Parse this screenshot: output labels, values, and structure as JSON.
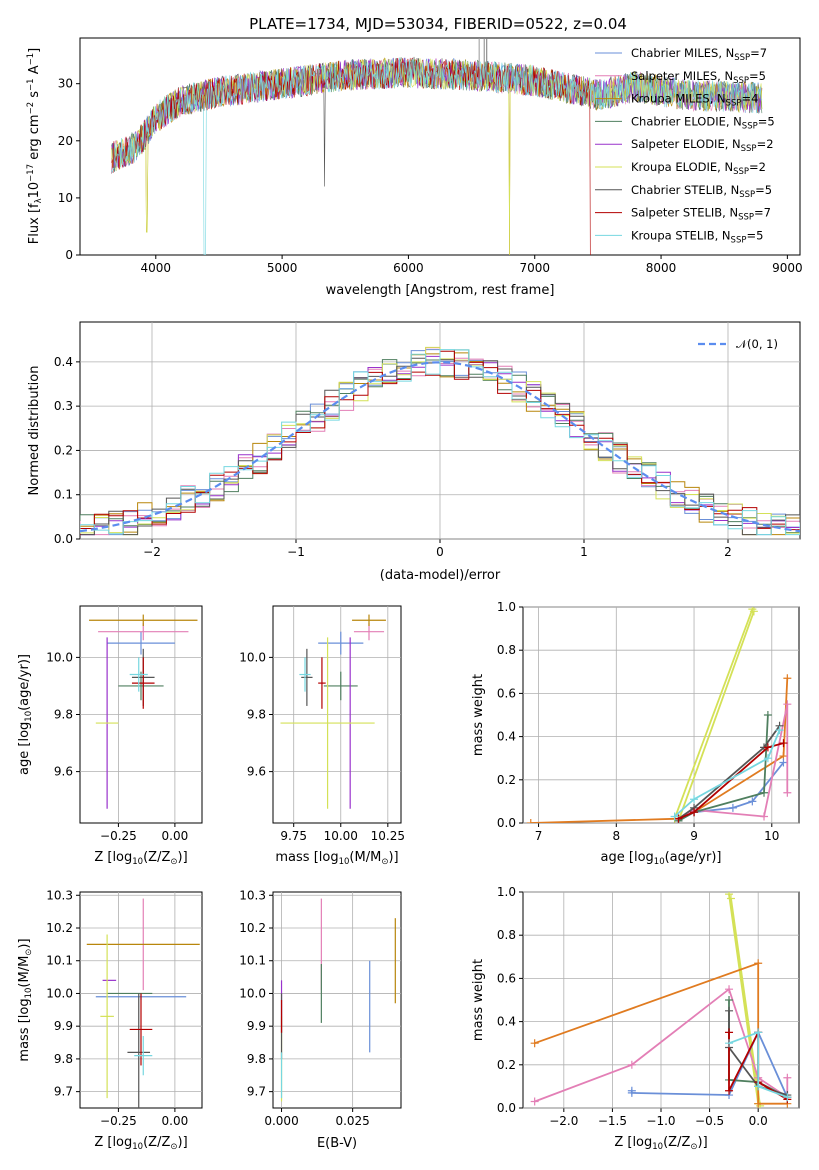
{
  "figure": {
    "title": "PLATE=1734, MJD=53034, FIBERID=0522, z=0.04"
  },
  "colors": {
    "Chabrier MILES": "#6a8fd8",
    "Salpeter MILES": "#e37fb6",
    "Kroupa MILES": "#b8860b",
    "Chabrier ELODIE": "#4f7f5f",
    "Salpeter ELODIE": "#9932cc",
    "Kroupa ELODIE": "#d4e157",
    "Chabrier STELIB": "#555555",
    "Salpeter STELIB": "#b30000",
    "Kroupa STELIB": "#76d7e0",
    "normal_curve": "#5b8def",
    "orange": "#e07b20"
  },
  "chart_data": [
    {
      "type": "line",
      "xlabel": "wavelength [Angstrom, rest frame]",
      "ylabel_parts": [
        "Flux [f",
        "λ",
        "10",
        "−17",
        " erg cm",
        "−2",
        " s",
        "−1",
        " A",
        "−1",
        "]"
      ],
      "xlim": [
        3400,
        9100
      ],
      "ylim": [
        0,
        38
      ],
      "xticks": [
        "4000",
        "5000",
        "6000",
        "7000",
        "8000",
        "9000"
      ],
      "yticks": [
        "0",
        "10",
        "20",
        "30"
      ],
      "legend": [
        {
          "name": "Chabrier MILES",
          "nssp": "7"
        },
        {
          "name": "Salpeter MILES",
          "nssp": "5"
        },
        {
          "name": "Kroupa MILES",
          "nssp": "4"
        },
        {
          "name": "Chabrier ELODIE",
          "nssp": "5"
        },
        {
          "name": "Salpeter ELODIE",
          "nssp": "2"
        },
        {
          "name": "Kroupa ELODIE",
          "nssp": "2"
        },
        {
          "name": "Chabrier STELIB",
          "nssp": "5"
        },
        {
          "name": "Salpeter STELIB",
          "nssp": "7"
        },
        {
          "name": "Kroupa STELIB",
          "nssp": "5"
        }
      ],
      "legend_subscript": "SSP",
      "legend_prefix": "N",
      "continuum": [
        [
          3650,
          17
        ],
        [
          3850,
          19
        ],
        [
          4000,
          24
        ],
        [
          4200,
          27
        ],
        [
          4500,
          28.5
        ],
        [
          5000,
          30
        ],
        [
          5500,
          31.5
        ],
        [
          6000,
          32
        ],
        [
          6500,
          31.5
        ],
        [
          7000,
          30.5
        ],
        [
          7500,
          28
        ],
        [
          7800,
          29.5
        ],
        [
          8200,
          28
        ],
        [
          8800,
          27.5
        ]
      ],
      "drops": [
        [
          3920,
          0
        ],
        [
          4390,
          0
        ],
        [
          6800,
          0
        ],
        [
          7430,
          0
        ]
      ]
    },
    {
      "type": "histogram",
      "xlabel": "(data-model)/error",
      "ylabel": "Normed distribution",
      "xlim": [
        -2.5,
        2.5
      ],
      "ylim": [
        0,
        0.49
      ],
      "xticks": [
        "−2",
        "−1",
        "0",
        "1",
        "2"
      ],
      "yticks": [
        "0.0",
        "0.1",
        "0.2",
        "0.3",
        "0.4"
      ],
      "legend": "𝒩(0, 1)",
      "bin_width": 0.1,
      "curve": "normal(0,1)"
    },
    {
      "type": "errorbar",
      "xlabel": "Z [log10(Z/Z⊙)]",
      "ylabel": "age  [log10(age/yr)]",
      "xlim": [
        -0.42,
        0.12
      ],
      "ylim": [
        9.42,
        10.18
      ],
      "xticks": [
        "−0.25",
        "0.00"
      ],
      "yticks": [
        "9.6",
        "9.8",
        "10.0"
      ],
      "points": [
        {
          "m": "Chabrier MILES",
          "x": -0.15,
          "xerr": 0.15,
          "y": 10.05,
          "yerr": 0.04
        },
        {
          "m": "Salpeter MILES",
          "x": -0.14,
          "xerr": 0.2,
          "y": 10.09,
          "yerr": 0.03
        },
        {
          "m": "Kroupa MILES",
          "x": -0.14,
          "xerr": 0.24,
          "y": 10.13,
          "yerr": 0.02
        },
        {
          "m": "Chabrier ELODIE",
          "x": -0.15,
          "xerr": 0.1,
          "y": 9.9,
          "yerr": 0.05
        },
        {
          "m": "Salpeter ELODIE",
          "x": -0.3,
          "xerr": 0.0,
          "y": 9.77,
          "yerr": 0.3
        },
        {
          "m": "Kroupa ELODIE",
          "x": -0.3,
          "xerr": 0.05,
          "y": 9.77,
          "yerr": 0.0
        },
        {
          "m": "Chabrier STELIB",
          "x": -0.14,
          "xerr": 0.05,
          "y": 9.93,
          "yerr": 0.1
        },
        {
          "m": "Salpeter STELIB",
          "x": -0.14,
          "xerr": 0.05,
          "y": 9.91,
          "yerr": 0.09
        },
        {
          "m": "Kroupa STELIB",
          "x": -0.16,
          "xerr": 0.04,
          "y": 9.94,
          "yerr": 0.06
        }
      ]
    },
    {
      "type": "errorbar",
      "xlabel": "mass [log10(M/M⊙)]",
      "xlim": [
        9.64,
        10.32
      ],
      "ylim": [
        9.42,
        10.18
      ],
      "xticks": [
        "9.75",
        "10.00",
        "10.25"
      ],
      "yticks": [
        "9.6",
        "9.8",
        "10.0"
      ],
      "points": [
        {
          "m": "Chabrier MILES",
          "x": 10.0,
          "xerr": 0.12,
          "y": 10.05,
          "yerr": 0.04
        },
        {
          "m": "Salpeter MILES",
          "x": 10.15,
          "xerr": 0.08,
          "y": 10.09,
          "yerr": 0.03
        },
        {
          "m": "Kroupa MILES",
          "x": 10.15,
          "xerr": 0.09,
          "y": 10.13,
          "yerr": 0.02
        },
        {
          "m": "Chabrier ELODIE",
          "x": 10.0,
          "xerr": 0.09,
          "y": 9.9,
          "yerr": 0.05
        },
        {
          "m": "Salpeter ELODIE",
          "x": 10.05,
          "xerr": 0.0,
          "y": 9.77,
          "yerr": 0.3
        },
        {
          "m": "Kroupa ELODIE",
          "x": 9.93,
          "xerr": 0.25,
          "y": 9.77,
          "yerr": 0.3
        },
        {
          "m": "Chabrier STELIB",
          "x": 9.82,
          "xerr": 0.03,
          "y": 9.93,
          "yerr": 0.1
        },
        {
          "m": "Salpeter STELIB",
          "x": 9.9,
          "xerr": 0.02,
          "y": 9.91,
          "yerr": 0.09
        },
        {
          "m": "Kroupa STELIB",
          "x": 9.81,
          "xerr": 0.03,
          "y": 9.94,
          "yerr": 0.06
        }
      ]
    },
    {
      "type": "line",
      "xlabel": "age  [log10(age/yr)]",
      "ylabel": "mass weight",
      "xlim": [
        6.8,
        10.35
      ],
      "ylim": [
        0,
        1
      ],
      "xticks": [
        "7",
        "8",
        "9",
        "10"
      ],
      "yticks": [
        "0.0",
        "0.2",
        "0.4",
        "0.6",
        "0.8",
        "1.0"
      ],
      "series": [
        {
          "m": "Kroupa ELODIE",
          "x": [
            8.75,
            9.75
          ],
          "y": [
            0.02,
            0.99
          ]
        },
        {
          "m": "Kroupa ELODIE",
          "x": [
            8.8,
            9.77
          ],
          "y": [
            0.01,
            0.98
          ]
        },
        {
          "m": "Kroupa MILES",
          "x": [
            6.9,
            8.8,
            9.0,
            10.15,
            10.2
          ],
          "y": [
            0.0,
            0.02,
            0.05,
            0.31,
            0.67
          ]
        },
        {
          "m": "Chabrier MILES",
          "x": [
            8.8,
            9.0,
            9.5,
            9.75,
            10.15
          ],
          "y": [
            0.01,
            0.05,
            0.07,
            0.1,
            0.28
          ]
        },
        {
          "m": "Salpeter MILES",
          "x": [
            8.8,
            9.0,
            9.9,
            10.2,
            10.2
          ],
          "y": [
            0.02,
            0.06,
            0.03,
            0.55,
            0.14
          ]
        },
        {
          "m": "Chabrier ELODIE",
          "x": [
            8.8,
            9.0,
            9.9,
            9.95
          ],
          "y": [
            0.01,
            0.05,
            0.14,
            0.5
          ]
        },
        {
          "m": "Chabrier STELIB",
          "x": [
            8.8,
            9.0,
            9.9,
            10.1
          ],
          "y": [
            0.02,
            0.07,
            0.35,
            0.45
          ]
        },
        {
          "m": "Salpeter STELIB",
          "x": [
            8.8,
            9.0,
            9.95,
            10.15
          ],
          "y": [
            0.02,
            0.05,
            0.35,
            0.37
          ]
        },
        {
          "m": "Kroupa STELIB",
          "x": [
            8.75,
            9.0,
            9.95,
            10.1
          ],
          "y": [
            0.03,
            0.11,
            0.3,
            0.43
          ]
        }
      ]
    },
    {
      "type": "errorbar",
      "xlabel": "Z [log10(Z/Z⊙)]",
      "ylabel": "mass [log10(M/M⊙)]",
      "xlim": [
        -0.42,
        0.12
      ],
      "ylim": [
        9.65,
        10.31
      ],
      "xticks": [
        "−0.25",
        "0.00"
      ],
      "yticks": [
        "9.7",
        "9.8",
        "9.9",
        "10.0",
        "10.1",
        "10.2",
        "10.3"
      ],
      "points": [
        {
          "m": "Chabrier MILES",
          "x": -0.15,
          "xerr": 0.2,
          "y": 9.99,
          "yerr": 0.01
        },
        {
          "m": "Salpeter MILES",
          "x": -0.14,
          "xerr": 0.0,
          "y": 10.15,
          "yerr": 0.14
        },
        {
          "m": "Kroupa MILES",
          "x": -0.14,
          "xerr": 0.25,
          "y": 10.15,
          "yerr": 0.0
        },
        {
          "m": "Chabrier ELODIE",
          "x": -0.2,
          "xerr": 0.1,
          "y": 10.0,
          "yerr": 0.0
        },
        {
          "m": "Salpeter ELODIE",
          "x": -0.29,
          "xerr": 0.03,
          "y": 10.04,
          "yerr": 0.0
        },
        {
          "m": "Kroupa ELODIE",
          "x": -0.3,
          "xerr": 0.03,
          "y": 9.93,
          "yerr": 0.25
        },
        {
          "m": "Chabrier STELIB",
          "x": -0.16,
          "xerr": 0.05,
          "y": 9.82,
          "yerr": 0.18
        },
        {
          "m": "Salpeter STELIB",
          "x": -0.15,
          "xerr": 0.05,
          "y": 9.89,
          "yerr": 0.11
        },
        {
          "m": "Kroupa STELIB",
          "x": -0.14,
          "xerr": 0.04,
          "y": 9.81,
          "yerr": 0.06
        }
      ]
    },
    {
      "type": "errorbar",
      "xlabel": "E(B-V)",
      "xlim": [
        -0.003,
        0.042
      ],
      "ylim": [
        9.65,
        10.31
      ],
      "xticks": [
        "0.000",
        "0.025"
      ],
      "yticks": [
        "9.7",
        "9.8",
        "9.9",
        "10.0",
        "10.1",
        "10.2",
        "10.3"
      ],
      "points": [
        {
          "m": "Chabrier MILES",
          "x": 0.031,
          "xerr": 0.0,
          "y": 9.96,
          "yerr": 0.14
        },
        {
          "m": "Salpeter MILES",
          "x": 0.014,
          "xerr": 0.0,
          "y": 10.15,
          "yerr": 0.14
        },
        {
          "m": "Kroupa MILES",
          "x": 0.04,
          "xerr": 0.0,
          "y": 10.1,
          "yerr": 0.13
        },
        {
          "m": "Chabrier ELODIE",
          "x": 0.014,
          "xerr": 0.0,
          "y": 10.0,
          "yerr": 0.09
        },
        {
          "m": "Salpeter ELODIE",
          "x": 0.0,
          "xerr": 0.0,
          "y": 9.96,
          "yerr": 0.08
        },
        {
          "m": "Kroupa ELODIE",
          "x": 0.0,
          "xerr": 0.0,
          "y": 9.8,
          "yerr": 0.13
        },
        {
          "m": "Chabrier STELIB",
          "x": 0.0,
          "xerr": 0.0,
          "y": 9.9,
          "yerr": 0.1
        },
        {
          "m": "Salpeter STELIB",
          "x": 0.0,
          "xerr": 0.0,
          "y": 9.93,
          "yerr": 0.05
        },
        {
          "m": "Kroupa STELIB",
          "x": 0.0,
          "xerr": 0.0,
          "y": 9.75,
          "yerr": 0.07
        }
      ]
    },
    {
      "type": "line",
      "xlabel": "Z [log10(Z/Z⊙)]",
      "ylabel": "mass weight",
      "xlim": [
        -2.42,
        0.42
      ],
      "ylim": [
        0,
        1
      ],
      "xticks": [
        "−2.0",
        "−1.5",
        "−1.0",
        "−0.5",
        "0.0"
      ],
      "yticks": [
        "0.0",
        "0.2",
        "0.4",
        "0.6",
        "0.8",
        "1.0"
      ],
      "series": [
        {
          "m": "Kroupa ELODIE",
          "x": [
            -0.3,
            0.0
          ],
          "y": [
            0.99,
            0.02
          ]
        },
        {
          "m": "Kroupa ELODIE",
          "x": [
            -0.28,
            0.02
          ],
          "y": [
            0.97,
            0.01
          ]
        },
        {
          "m": "Kroupa MILES",
          "x": [
            -2.3,
            0.0,
            0.0,
            0.3
          ],
          "y": [
            0.3,
            0.67,
            0.02,
            0.02
          ]
        },
        {
          "m": "Salpeter MILES",
          "x": [
            -2.3,
            -1.3,
            -0.3,
            0.0,
            0.3,
            0.3
          ],
          "y": [
            0.03,
            0.2,
            0.55,
            0.14,
            0.05,
            0.14
          ]
        },
        {
          "m": "Chabrier MILES",
          "x": [
            -1.3,
            -1.3,
            -0.3,
            0.0,
            0.3
          ],
          "y": [
            0.08,
            0.07,
            0.06,
            0.35,
            0.05
          ]
        },
        {
          "m": "Chabrier ELODIE",
          "x": [
            -0.3,
            -0.3,
            0.0,
            0.3
          ],
          "y": [
            0.5,
            0.13,
            0.12,
            0.05
          ]
        },
        {
          "m": "Chabrier STELIB",
          "x": [
            -0.3,
            -0.3,
            0.0,
            0.3
          ],
          "y": [
            0.45,
            0.28,
            0.1,
            0.06
          ]
        },
        {
          "m": "Salpeter STELIB",
          "x": [
            -0.3,
            -0.3,
            0.0,
            0.0,
            0.3
          ],
          "y": [
            0.35,
            0.08,
            0.35,
            0.12,
            0.04
          ]
        },
        {
          "m": "Kroupa STELIB",
          "x": [
            -0.3,
            0.0,
            0.0,
            0.3
          ],
          "y": [
            0.3,
            0.35,
            0.1,
            0.05
          ]
        }
      ]
    }
  ]
}
